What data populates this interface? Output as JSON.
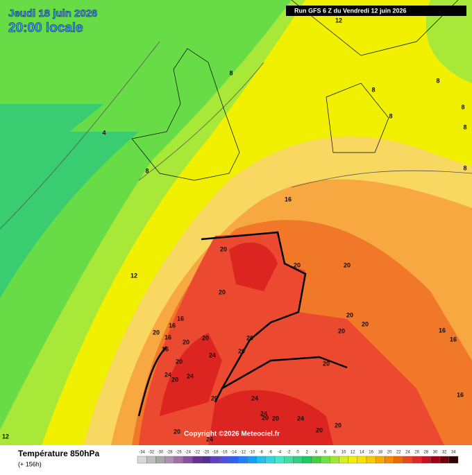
{
  "header": {
    "date": "Jeudi 18 juin 2026",
    "time": "20:00 locale",
    "run": "Run GFS 6 Z du Vendredi 12 juin 2026"
  },
  "copyright": "Copyright ©2026 Meteociel.fr",
  "contour_labels": [
    12,
    8,
    8,
    8,
    8,
    8,
    8,
    4,
    8,
    8,
    16,
    12,
    20,
    20,
    20,
    20,
    16,
    16,
    20,
    16,
    16,
    20,
    20,
    20,
    20,
    20,
    20,
    16,
    16,
    24,
    20,
    20,
    20,
    24,
    20,
    24,
    20,
    24,
    24,
    20,
    20,
    24,
    20,
    20,
    20,
    24,
    16,
    12
  ],
  "legend": {
    "title": "Température 850hPa",
    "lead": "(+ 156h)",
    "ticks": [
      -34,
      -32,
      -30,
      -28,
      -26,
      -24,
      -22,
      -20,
      -18,
      -16,
      -14,
      -12,
      -10,
      -8,
      -6,
      -4,
      -2,
      0,
      2,
      4,
      6,
      8,
      10,
      12,
      14,
      16,
      18,
      20,
      22,
      24,
      26,
      28,
      30,
      32,
      34
    ],
    "colors": [
      "#d8d8d8",
      "#c0c0c0",
      "#a8a8a8",
      "#b090b0",
      "#a070a8",
      "#8850a0",
      "#6a3090",
      "#503090",
      "#6040c0",
      "#5050e0",
      "#3060f0",
      "#2080f8",
      "#10a0f8",
      "#20c0f0",
      "#30d8e0",
      "#40e8c8",
      "#40e0a0",
      "#30d080",
      "#20c860",
      "#40d040",
      "#70e040",
      "#a0e830",
      "#d0f020",
      "#f0f000",
      "#f8e000",
      "#f8c800",
      "#f8a800",
      "#f88800",
      "#f06800",
      "#e84820",
      "#e02828",
      "#c81020",
      "#a00010",
      "#700008",
      "#300000"
    ]
  }
}
